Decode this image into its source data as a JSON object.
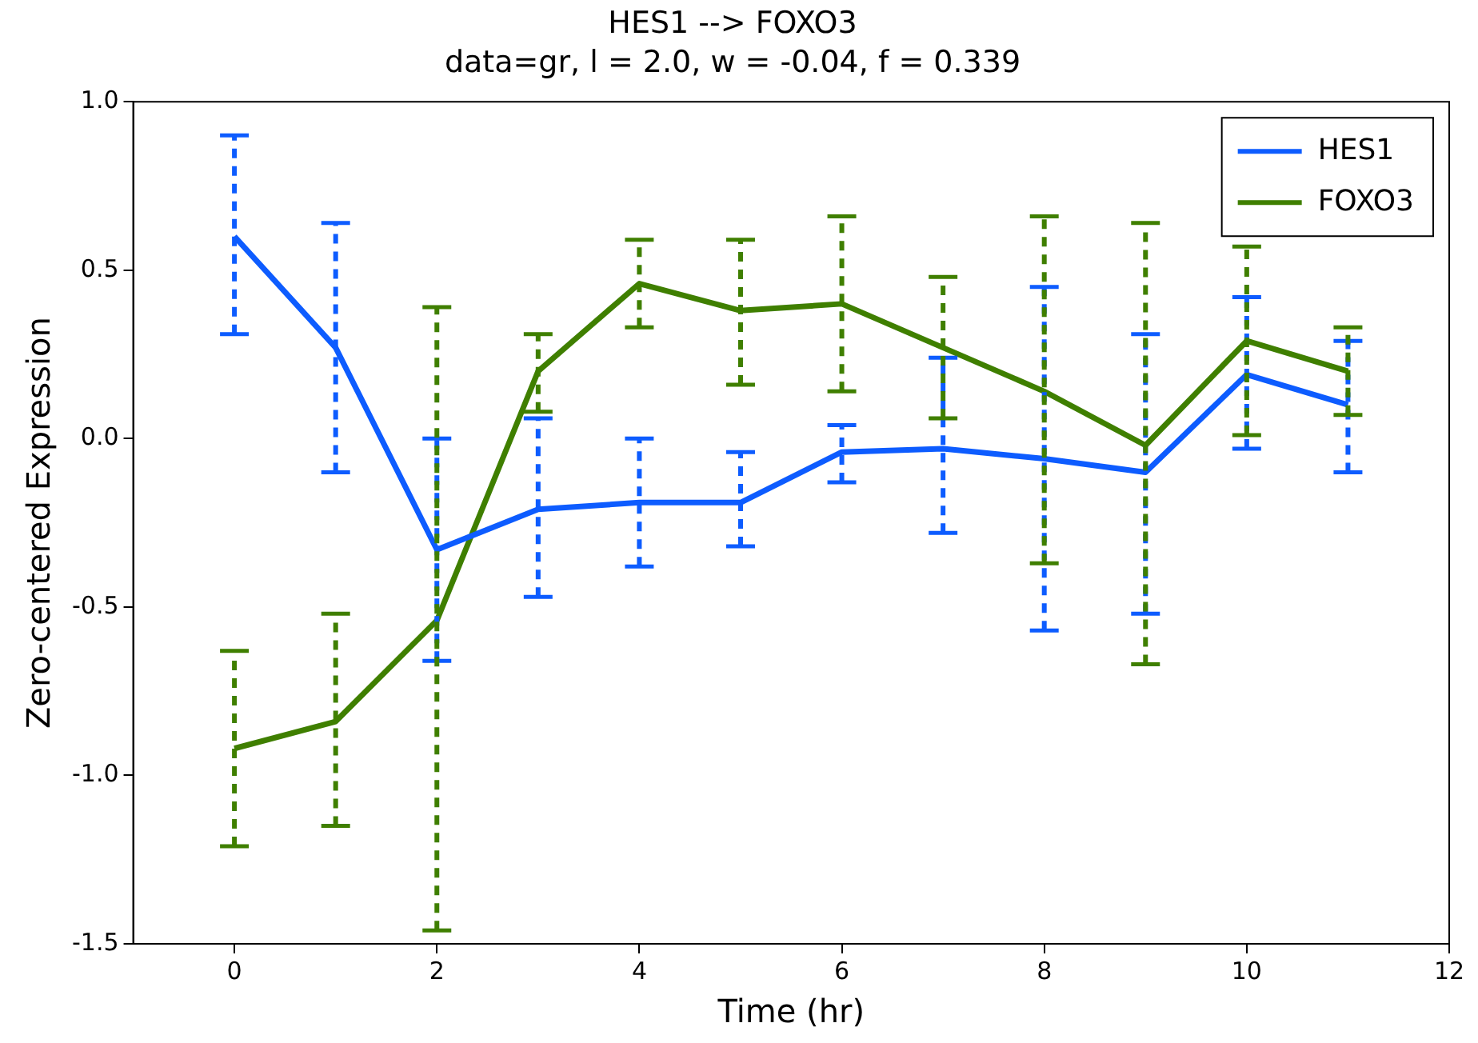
{
  "chart_data": {
    "type": "line",
    "title": "HES1 --> FOXO3",
    "subtitle": "data=gr, l = 2.0, w = -0.04, f = 0.339",
    "xlabel": "Time (hr)",
    "ylabel": "Zero-centered Expression",
    "x": [
      0,
      1,
      2,
      3,
      4,
      5,
      6,
      7,
      8,
      9,
      10,
      11
    ],
    "series": [
      {
        "name": "HES1",
        "color": "#0d5cff",
        "values": [
          0.6,
          0.27,
          -0.33,
          -0.21,
          -0.19,
          -0.19,
          -0.04,
          -0.03,
          -0.06,
          -0.1,
          0.19,
          0.1
        ],
        "errors": [
          [
            0.31,
            0.9
          ],
          [
            -0.1,
            0.64
          ],
          [
            -0.66,
            0.0
          ],
          [
            -0.47,
            0.06
          ],
          [
            -0.38,
            0.0
          ],
          [
            -0.32,
            -0.04
          ],
          [
            -0.13,
            0.04
          ],
          [
            -0.28,
            0.24
          ],
          [
            -0.57,
            0.45
          ],
          [
            -0.52,
            0.31
          ],
          [
            -0.03,
            0.42
          ],
          [
            -0.1,
            0.29
          ]
        ]
      },
      {
        "name": "FOXO3",
        "color": "#3f7f00",
        "values": [
          -0.92,
          -0.84,
          -0.54,
          0.2,
          0.46,
          0.38,
          0.4,
          0.27,
          0.14,
          -0.02,
          0.29,
          0.2
        ],
        "errors": [
          [
            -1.21,
            -0.63
          ],
          [
            -1.15,
            -0.52
          ],
          [
            -1.46,
            0.39
          ],
          [
            0.08,
            0.31
          ],
          [
            0.33,
            0.59
          ],
          [
            0.16,
            0.59
          ],
          [
            0.14,
            0.66
          ],
          [
            0.06,
            0.48
          ],
          [
            -0.37,
            0.66
          ],
          [
            -0.67,
            0.64
          ],
          [
            0.01,
            0.57
          ],
          [
            0.07,
            0.33
          ]
        ]
      }
    ],
    "xlim": [
      -1,
      12
    ],
    "xticks": [
      0,
      2,
      4,
      6,
      8,
      10,
      12
    ],
    "ylim": [
      -1.5,
      1.0
    ],
    "yticks": [
      {
        "value": -1.5,
        "label": "-1.5"
      },
      {
        "value": -1.0,
        "label": "-1.0"
      },
      {
        "value": -0.5,
        "label": "-0.5"
      },
      {
        "value": 0,
        "label": "0.0"
      },
      {
        "value": 0.5,
        "label": "0.5"
      },
      {
        "value": 1.0,
        "label": "1.0"
      }
    ],
    "grid": false,
    "legend": "top right",
    "marker": "none",
    "line_style": "solid"
  }
}
